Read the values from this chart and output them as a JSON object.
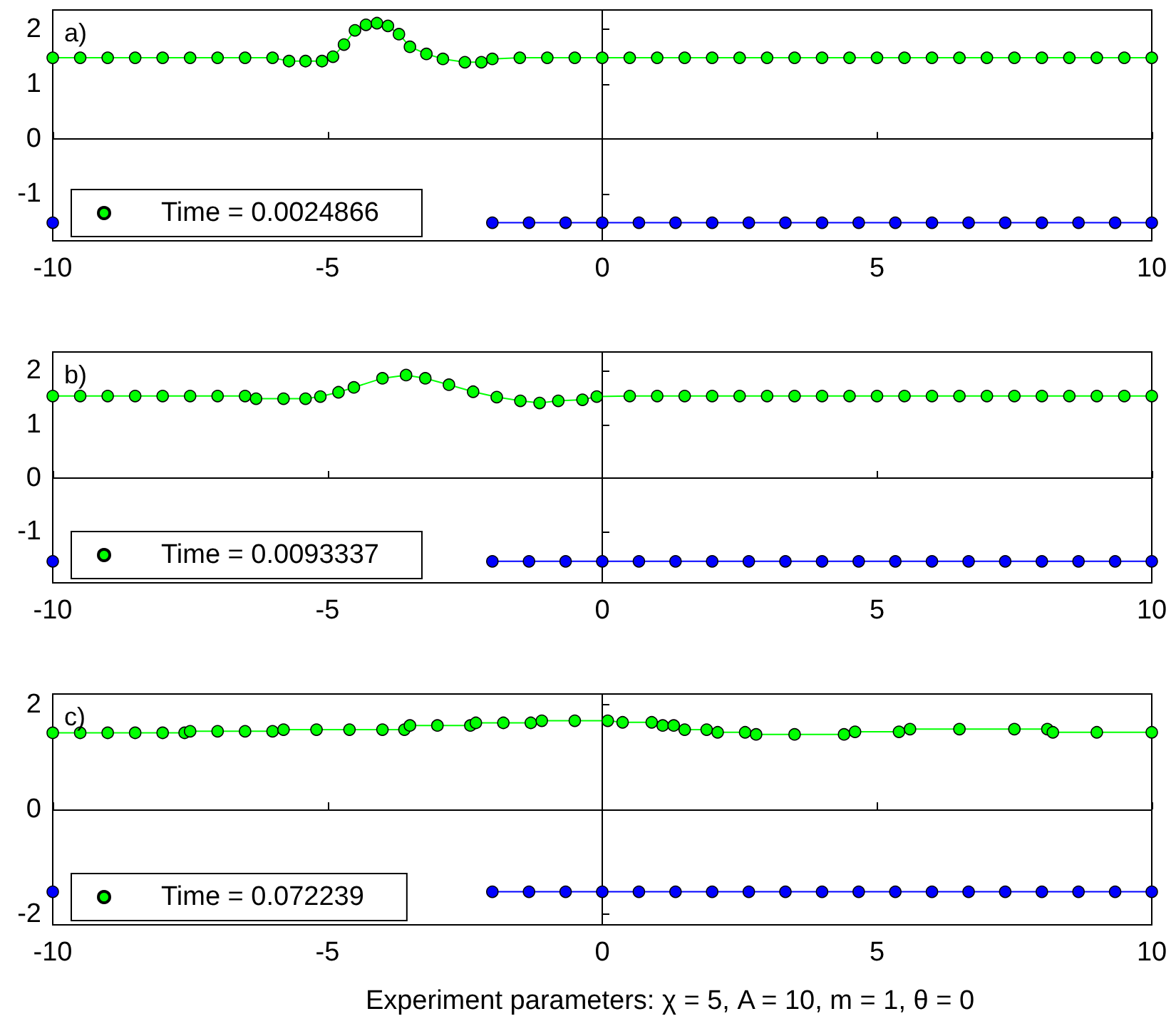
{
  "chart_data": [
    {
      "type": "line",
      "title": "a)",
      "xlim": [
        -10,
        10
      ],
      "xticks": [
        -10,
        -5,
        0,
        5,
        10
      ],
      "ylim": [
        -1.85,
        2.35
      ],
      "yticks": [
        -1,
        0,
        1,
        2
      ],
      "legend": "bottom left",
      "marker": "circle",
      "series": [
        {
          "name": "Time = 0.0024866",
          "color": "#00ff00",
          "x": [
            -10,
            -9.5,
            -9,
            -8.5,
            -8,
            -7.5,
            -7,
            -6.5,
            -6,
            -5.7,
            -5.4,
            -5.1,
            -4.9,
            -4.7,
            -4.5,
            -4.3,
            -4.1,
            -3.9,
            -3.7,
            -3.5,
            -3.2,
            -2.9,
            -2.5,
            -2.2,
            -2,
            -1.5,
            -1,
            -0.5,
            0,
            0.5,
            1,
            1.5,
            2,
            2.5,
            3,
            3.5,
            4,
            4.5,
            5,
            5.5,
            6,
            6.5,
            7,
            7.5,
            8,
            8.5,
            9,
            9.5,
            10
          ],
          "values": [
            1.48,
            1.48,
            1.48,
            1.48,
            1.48,
            1.48,
            1.48,
            1.48,
            1.48,
            1.42,
            1.42,
            1.42,
            1.5,
            1.72,
            1.98,
            2.08,
            2.11,
            2.06,
            1.91,
            1.68,
            1.55,
            1.46,
            1.4,
            1.4,
            1.46,
            1.48,
            1.48,
            1.48,
            1.48,
            1.48,
            1.48,
            1.48,
            1.48,
            1.48,
            1.48,
            1.48,
            1.48,
            1.48,
            1.48,
            1.48,
            1.48,
            1.48,
            1.48,
            1.48,
            1.48,
            1.48,
            1.48,
            1.48,
            1.48
          ]
        },
        {
          "color": "#0000ff",
          "x": [
            -10,
            -9.333,
            -8.667,
            -8,
            -7.333,
            -6.667,
            -6,
            -5.333,
            -4.667,
            -4,
            -3.333,
            -2.667,
            -2,
            -1.333,
            -0.667,
            0,
            0.667,
            1.333,
            2,
            2.667,
            3.333,
            4,
            4.667,
            5.333,
            6,
            6.667,
            7.333,
            8,
            8.667,
            9.333,
            10
          ],
          "values": [
            -1.52,
            null,
            null,
            null,
            null,
            null,
            null,
            null,
            null,
            null,
            null,
            null,
            -1.52,
            -1.52,
            -1.52,
            -1.52,
            -1.52,
            -1.52,
            -1.52,
            -1.52,
            -1.52,
            -1.52,
            -1.52,
            -1.52,
            -1.52,
            -1.52,
            -1.52,
            -1.52,
            -1.52,
            -1.52,
            -1.52
          ]
        }
      ]
    },
    {
      "type": "line",
      "title": "b)",
      "xlim": [
        -10,
        10
      ],
      "xticks": [
        -10,
        -5,
        0,
        5,
        10
      ],
      "ylim": [
        -1.95,
        2.35
      ],
      "yticks": [
        -1,
        0,
        1,
        2
      ],
      "legend": "bottom left",
      "marker": "circle",
      "series": [
        {
          "name": "Time = 0.0093337",
          "color": "#00ff00",
          "x": [
            -10,
            -9.5,
            -9,
            -8.5,
            -8,
            -7.5,
            -7,
            -6.5,
            -6.3,
            -5.8,
            -5.4,
            -5.13,
            -4.8,
            -4.52,
            -4,
            -3.57,
            -3.22,
            -2.79,
            -2.35,
            -1.92,
            -1.49,
            -1.14,
            -0.8,
            -0.36,
            -0.1,
            0.5,
            1,
            1.5,
            2,
            2.5,
            3,
            3.5,
            4,
            4.5,
            5,
            5.5,
            6,
            6.5,
            7,
            7.5,
            8,
            8.5,
            9,
            9.5,
            10
          ],
          "values": [
            1.53,
            1.53,
            1.53,
            1.53,
            1.53,
            1.53,
            1.53,
            1.53,
            1.48,
            1.48,
            1.48,
            1.52,
            1.6,
            1.69,
            1.86,
            1.92,
            1.86,
            1.74,
            1.61,
            1.51,
            1.44,
            1.4,
            1.44,
            1.46,
            1.52,
            1.53,
            1.53,
            1.53,
            1.53,
            1.53,
            1.53,
            1.53,
            1.53,
            1.53,
            1.53,
            1.53,
            1.53,
            1.53,
            1.53,
            1.53,
            1.53,
            1.53,
            1.53,
            1.53,
            1.53
          ]
        },
        {
          "color": "#0000ff",
          "x": [
            -10,
            -9.333,
            -8.667,
            -8,
            -7.333,
            -6.667,
            -6,
            -5.333,
            -4.667,
            -4,
            -3.333,
            -2.667,
            -2,
            -1.333,
            -0.667,
            0,
            0.667,
            1.333,
            2,
            2.667,
            3.333,
            4,
            4.667,
            5.333,
            6,
            6.667,
            7.333,
            8,
            8.667,
            9.333,
            10
          ],
          "values": [
            -1.55,
            null,
            null,
            null,
            null,
            null,
            null,
            null,
            null,
            null,
            null,
            null,
            -1.55,
            -1.55,
            -1.55,
            -1.55,
            -1.55,
            -1.55,
            -1.55,
            -1.55,
            -1.55,
            -1.55,
            -1.55,
            -1.55,
            -1.55,
            -1.55,
            -1.55,
            -1.55,
            -1.55,
            -1.55,
            -1.55
          ]
        }
      ]
    },
    {
      "type": "line",
      "title": "c)",
      "xlabel": "Experiment parameters: χ = 5, A = 10, m = 1, θ = 0",
      "xlim": [
        -10,
        10
      ],
      "xticks": [
        -10,
        -5,
        0,
        5,
        10
      ],
      "ylim": [
        -2.2,
        2.2
      ],
      "yticks": [
        -2,
        0,
        2
      ],
      "legend": "bottom left",
      "marker": "circle",
      "series": [
        {
          "name": "Time = 0.072239",
          "color": "#00ff00",
          "x": [
            -10,
            -9.5,
            -9,
            -8.5,
            -8,
            -7.6,
            -7.5,
            -7,
            -6.5,
            -6,
            -5.8,
            -5.2,
            -4.6,
            -4,
            -3.6,
            -3.5,
            -3,
            -2.4,
            -2.3,
            -1.8,
            -1.3,
            -1.1,
            -0.5,
            0.1,
            0.37,
            0.9,
            1.1,
            1.3,
            1.5,
            1.9,
            2.1,
            2.6,
            2.8,
            3.5,
            4.4,
            4.6,
            5.4,
            5.6,
            6.5,
            7.5,
            8.1,
            8.2,
            9,
            10
          ],
          "values": [
            1.46,
            1.46,
            1.46,
            1.46,
            1.46,
            1.46,
            1.49,
            1.49,
            1.49,
            1.49,
            1.52,
            1.52,
            1.52,
            1.52,
            1.52,
            1.6,
            1.6,
            1.6,
            1.65,
            1.65,
            1.65,
            1.69,
            1.69,
            1.69,
            1.66,
            1.66,
            1.6,
            1.6,
            1.52,
            1.52,
            1.47,
            1.47,
            1.43,
            1.43,
            1.43,
            1.48,
            1.48,
            1.53,
            1.53,
            1.53,
            1.53,
            1.47,
            1.47,
            1.47
          ]
        },
        {
          "color": "#0000ff",
          "x": [
            -10,
            -9.333,
            -8.667,
            -8,
            -7.333,
            -6.667,
            -6,
            -5.333,
            -4.667,
            -4,
            -3.333,
            -2.667,
            -2,
            -1.333,
            -0.667,
            0,
            0.667,
            1.333,
            2,
            2.667,
            3.333,
            4,
            4.667,
            5.333,
            6,
            6.667,
            7.333,
            8,
            8.667,
            9.333,
            10
          ],
          "values": [
            -1.57,
            null,
            null,
            null,
            null,
            null,
            null,
            null,
            null,
            null,
            null,
            null,
            -1.57,
            -1.57,
            -1.57,
            -1.57,
            -1.57,
            -1.57,
            -1.57,
            -1.57,
            -1.57,
            -1.57,
            -1.57,
            -1.57,
            -1.57,
            -1.57,
            -1.57,
            -1.57,
            -1.57,
            -1.57,
            -1.57
          ]
        }
      ]
    }
  ]
}
